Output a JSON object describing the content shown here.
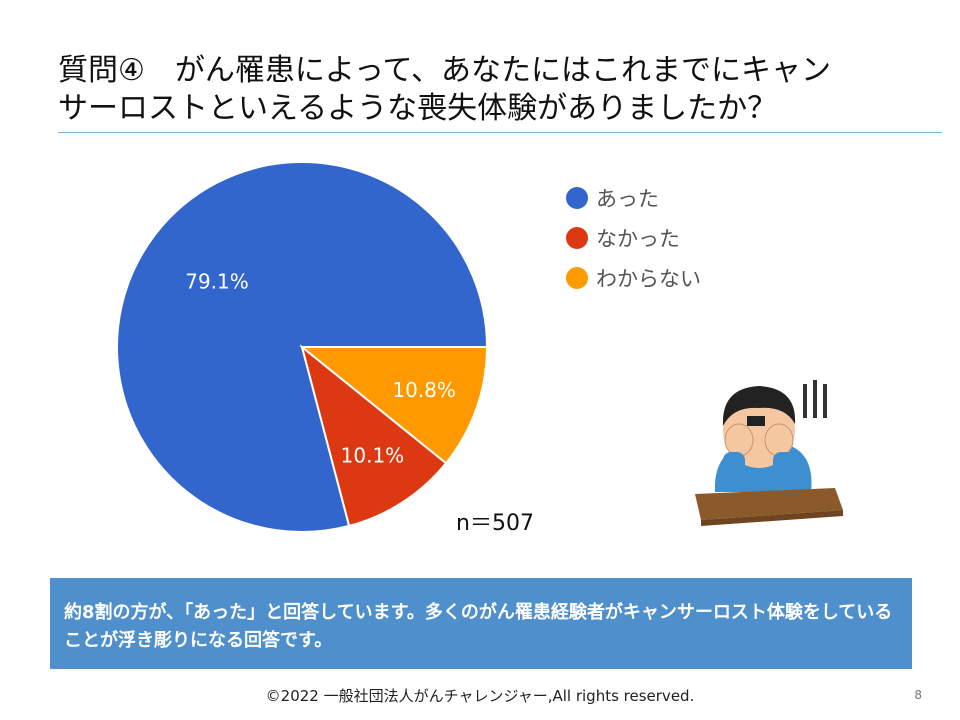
{
  "title": {
    "line1": "質問④　がん罹患によって、あなたにはこれまでにキャン",
    "line2": "サーロストといえるような喪失体験がありましたか？"
  },
  "chart_data": {
    "type": "pie",
    "categories": [
      "あった",
      "なかった",
      "わからない"
    ],
    "values": [
      79.1,
      10.1,
      10.8
    ],
    "labels": [
      "79.1%",
      "10.1%",
      "10.8%"
    ],
    "colors": [
      "#3366cc",
      "#dc3912",
      "#ff9900"
    ],
    "legend_position": "right",
    "start": "3 o'clock, counterclockwise"
  },
  "sample_size": "n＝507",
  "summary": "約8割の方が、「あった」と回答しています。多くのがん罹患経験者がキャンサーロスト体験をしていることが浮き彫りになる回答です。",
  "footer": "©2022 一般社団法人がんチャレンジャー,All rights reserved.",
  "page_number": "8"
}
